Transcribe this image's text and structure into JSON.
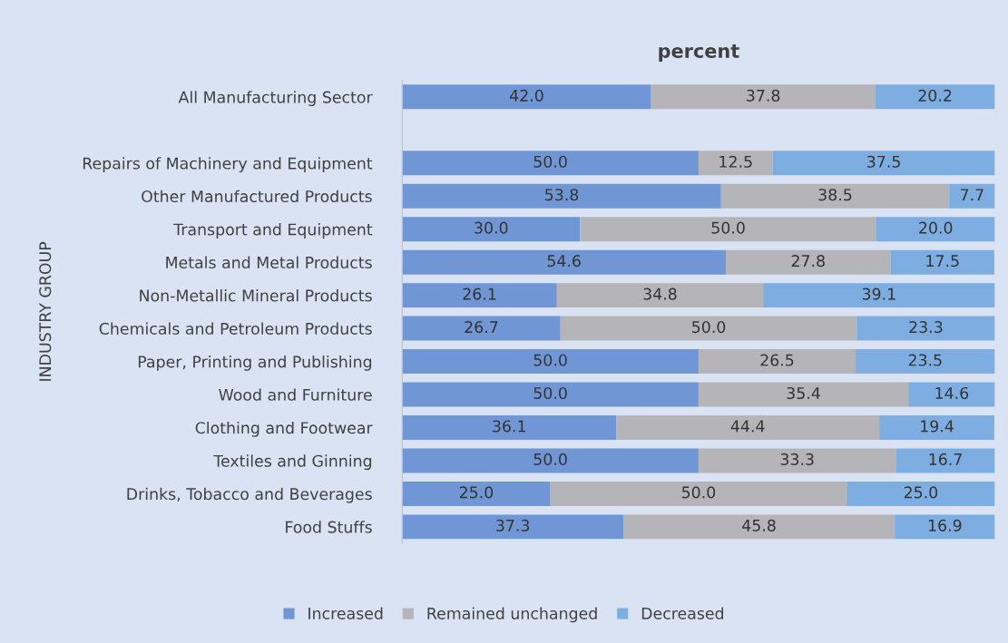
{
  "chart_data": {
    "type": "bar",
    "orientation": "horizontal",
    "stacked": true,
    "title": "percent",
    "ylabel": "INDUSTRY GROUP",
    "categories": [
      "All Manufacturing Sector",
      null,
      "Repairs of Machinery and Equipment",
      "Other Manufactured Products",
      "Transport and Equipment",
      "Metals and Metal Products",
      "Non-Metallic Mineral Products",
      "Chemicals and Petroleum Products",
      "Paper, Printing and Publishing",
      "Wood and Furniture",
      "Clothing and Footwear",
      "Textiles and Ginning",
      "Drinks, Tobacco and Beverages",
      "Food Stuffs"
    ],
    "series": [
      {
        "name": "Increased",
        "color": "#7196d5",
        "values": [
          42.0,
          null,
          50.0,
          53.8,
          30.0,
          54.6,
          26.1,
          26.7,
          50.0,
          50.0,
          36.1,
          50.0,
          25.0,
          37.3
        ],
        "value_labels": [
          "42.0",
          null,
          "50.0",
          "53.8",
          "30.0",
          "54.6",
          "26.1",
          "26.7",
          "50.0",
          "50.0",
          "36.1",
          "50.0",
          "25.0",
          "37.3"
        ]
      },
      {
        "name": "Remained unchanged",
        "color": "#b5b5b9",
        "values": [
          37.8,
          null,
          12.5,
          38.5,
          50.0,
          27.8,
          34.8,
          50.0,
          26.5,
          35.4,
          44.4,
          33.3,
          50.0,
          45.8
        ],
        "value_labels": [
          "37.8",
          null,
          "12.5",
          "38.5",
          "50.0",
          "27.8",
          "34.8",
          "50.0",
          "26.5",
          "35.4",
          "44.4",
          "33.3",
          "50.0",
          "45.8"
        ]
      },
      {
        "name": "Decreased",
        "color": "#7eaee1",
        "values": [
          20.2,
          null,
          37.5,
          7.7,
          20.0,
          17.5,
          39.1,
          23.3,
          23.5,
          14.6,
          19.4,
          16.7,
          25.0,
          16.9
        ],
        "value_labels": [
          "20.2",
          null,
          "37.5",
          "7.7",
          "20.0",
          "17.5",
          "39.1",
          "23.3",
          "23.5",
          "14.6",
          "19.4",
          "16.7",
          "25.0",
          "16.9"
        ]
      }
    ],
    "xlim": [
      0,
      100
    ],
    "tick_labels": "y",
    "legend": "bottom"
  }
}
